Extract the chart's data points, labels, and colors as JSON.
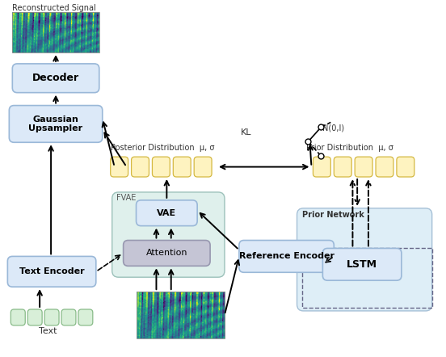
{
  "fig_width": 5.52,
  "fig_height": 4.42,
  "dpi": 100,
  "bg_color": "#ffffff",
  "box_blue_face": "#dce9f8",
  "box_blue_edge": "#9ab8d8",
  "box_gray_face": "#c5c5d5",
  "box_gray_edge": "#9898b0",
  "box_green_face": "#d8efd8",
  "box_green_edge": "#88bb88",
  "box_yellow_face": "#fef3c0",
  "box_yellow_edge": "#d4b840",
  "fvae_face": "#d8ede8",
  "fvae_edge": "#88b4ac",
  "prior_net_face": "#d0e8f4",
  "prior_net_edge": "#88aac8",
  "reconstructed_label": "Reconstructed Signal",
  "text_label": "Text",
  "kl_label": "KL",
  "posterior_label": "Posterior Distribution  μ, σ",
  "prior_label": "Prior Distribution  μ, σ",
  "n01_label": "N(0,I)",
  "fvae_label": "FVAE",
  "prior_net_label": "Prior Network"
}
